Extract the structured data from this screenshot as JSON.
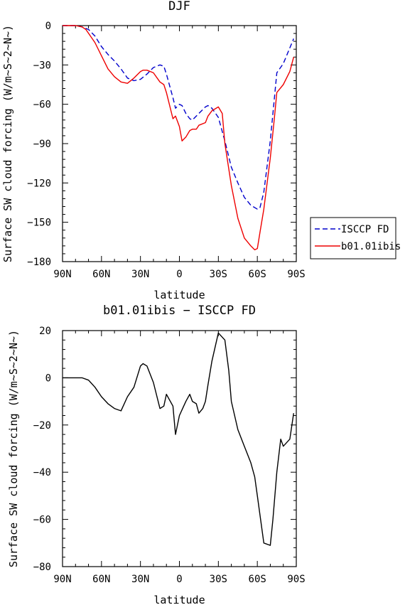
{
  "chart_data": [
    {
      "type": "line",
      "title": "DJF",
      "xlabel": "latitude",
      "ylabel": "Surface SW cloud forcing (W/m~S~2~N~)",
      "xlim": [
        90,
        -90
      ],
      "ylim": [
        -180,
        0
      ],
      "xticks": [
        {
          "value": 90,
          "label": "90N"
        },
        {
          "value": 60,
          "label": "60N"
        },
        {
          "value": 30,
          "label": "30N"
        },
        {
          "value": 0,
          "label": "0"
        },
        {
          "value": -30,
          "label": "30S"
        },
        {
          "value": -60,
          "label": "60S"
        },
        {
          "value": -90,
          "label": "90S"
        }
      ],
      "yticks": [
        {
          "value": 0,
          "label": "0"
        },
        {
          "value": -30,
          "label": "−30"
        },
        {
          "value": -60,
          "label": "−60"
        },
        {
          "value": -90,
          "label": "−90"
        },
        {
          "value": -120,
          "label": "−120"
        },
        {
          "value": -150,
          "label": "−150"
        },
        {
          "value": -180,
          "label": "−180"
        }
      ],
      "legend_position": "right",
      "series": [
        {
          "name": "ISCCP FD",
          "color": "#0000cc",
          "dash": "dashed",
          "x": [
            90,
            80,
            75,
            70,
            65,
            60,
            55,
            50,
            45,
            40,
            35,
            30,
            25,
            20,
            15,
            12,
            10,
            5,
            3,
            0,
            -2,
            -5,
            -8,
            -10,
            -15,
            -20,
            -22,
            -25,
            -30,
            -35,
            -40,
            -45,
            -50,
            -55,
            -60,
            -62,
            -65,
            -70,
            -75,
            -80,
            -85,
            -88
          ],
          "y": [
            0,
            0,
            -1,
            -3,
            -8,
            -16,
            -22,
            -27,
            -33,
            -40,
            -42,
            -41,
            -37,
            -32,
            -30,
            -31,
            -37,
            -55,
            -63,
            -60,
            -61,
            -67,
            -71,
            -72,
            -67,
            -62,
            -61,
            -63,
            -70,
            -88,
            -108,
            -120,
            -131,
            -137,
            -140,
            -139,
            -127,
            -88,
            -36,
            -29,
            -17,
            -10
          ]
        },
        {
          "name": "b01.01ibis",
          "color": "#ee0000",
          "dash": "solid",
          "x": [
            90,
            80,
            75,
            72,
            65,
            60,
            55,
            50,
            45,
            40,
            35,
            30,
            28,
            25,
            20,
            15,
            12,
            10,
            5,
            3,
            0,
            -2,
            -5,
            -8,
            -10,
            -13,
            -15,
            -20,
            -22,
            -25,
            -30,
            -33,
            -35,
            -40,
            -45,
            -50,
            -55,
            -58,
            -60,
            -62,
            -65,
            -70,
            -73,
            -75,
            -80,
            -85,
            -88
          ],
          "y": [
            0,
            0,
            -1,
            -3,
            -13,
            -23,
            -33,
            -39,
            -43,
            -44,
            -40,
            -35,
            -34,
            -34,
            -36,
            -43,
            -45,
            -51,
            -71,
            -69,
            -77,
            -88,
            -85,
            -80,
            -79,
            -79,
            -76,
            -74,
            -69,
            -65,
            -62,
            -67,
            -90,
            -122,
            -147,
            -162,
            -168,
            -171,
            -170,
            -158,
            -140,
            -101,
            -72,
            -51,
            -45,
            -35,
            -24
          ]
        }
      ]
    },
    {
      "type": "line",
      "title": "b01.01ibis − ISCCP FD",
      "xlabel": "latitude",
      "ylabel": "Surface SW cloud forcing (W/m~S~2~N~)",
      "xlim": [
        90,
        -90
      ],
      "ylim": [
        -80,
        20
      ],
      "xticks": [
        {
          "value": 90,
          "label": "90N"
        },
        {
          "value": 60,
          "label": "60N"
        },
        {
          "value": 30,
          "label": "30N"
        },
        {
          "value": 0,
          "label": "0"
        },
        {
          "value": -30,
          "label": "30S"
        },
        {
          "value": -60,
          "label": "60S"
        },
        {
          "value": -90,
          "label": "90S"
        }
      ],
      "yticks": [
        {
          "value": 20,
          "label": "20"
        },
        {
          "value": 0,
          "label": "0"
        },
        {
          "value": -20,
          "label": "−20"
        },
        {
          "value": -40,
          "label": "−40"
        },
        {
          "value": -60,
          "label": "−60"
        },
        {
          "value": -80,
          "label": "−80"
        }
      ],
      "series": [
        {
          "color": "#000000",
          "x": [
            90,
            80,
            75,
            70,
            65,
            60,
            55,
            50,
            45,
            40,
            35,
            30,
            28,
            25,
            20,
            15,
            12,
            10,
            5,
            3,
            0,
            -5,
            -8,
            -10,
            -13,
            -15,
            -18,
            -20,
            -22,
            -25,
            -30,
            -35,
            -38,
            -40,
            -45,
            -50,
            -55,
            -58,
            -60,
            -65,
            -70,
            -72,
            -75,
            -78,
            -80,
            -85,
            -88
          ],
          "y": [
            0,
            0,
            0,
            -1,
            -4,
            -8,
            -11,
            -13,
            -14,
            -8,
            -4,
            5,
            6,
            5,
            -2,
            -13,
            -12,
            -7,
            -12,
            -24,
            -16,
            -10,
            -7,
            -10,
            -11,
            -15,
            -13,
            -10,
            -3,
            7,
            19,
            16,
            3,
            -10,
            -22,
            -29,
            -36,
            -42,
            -50,
            -70,
            -71,
            -60,
            -40,
            -26,
            -29,
            -26,
            -15
          ]
        }
      ]
    }
  ]
}
